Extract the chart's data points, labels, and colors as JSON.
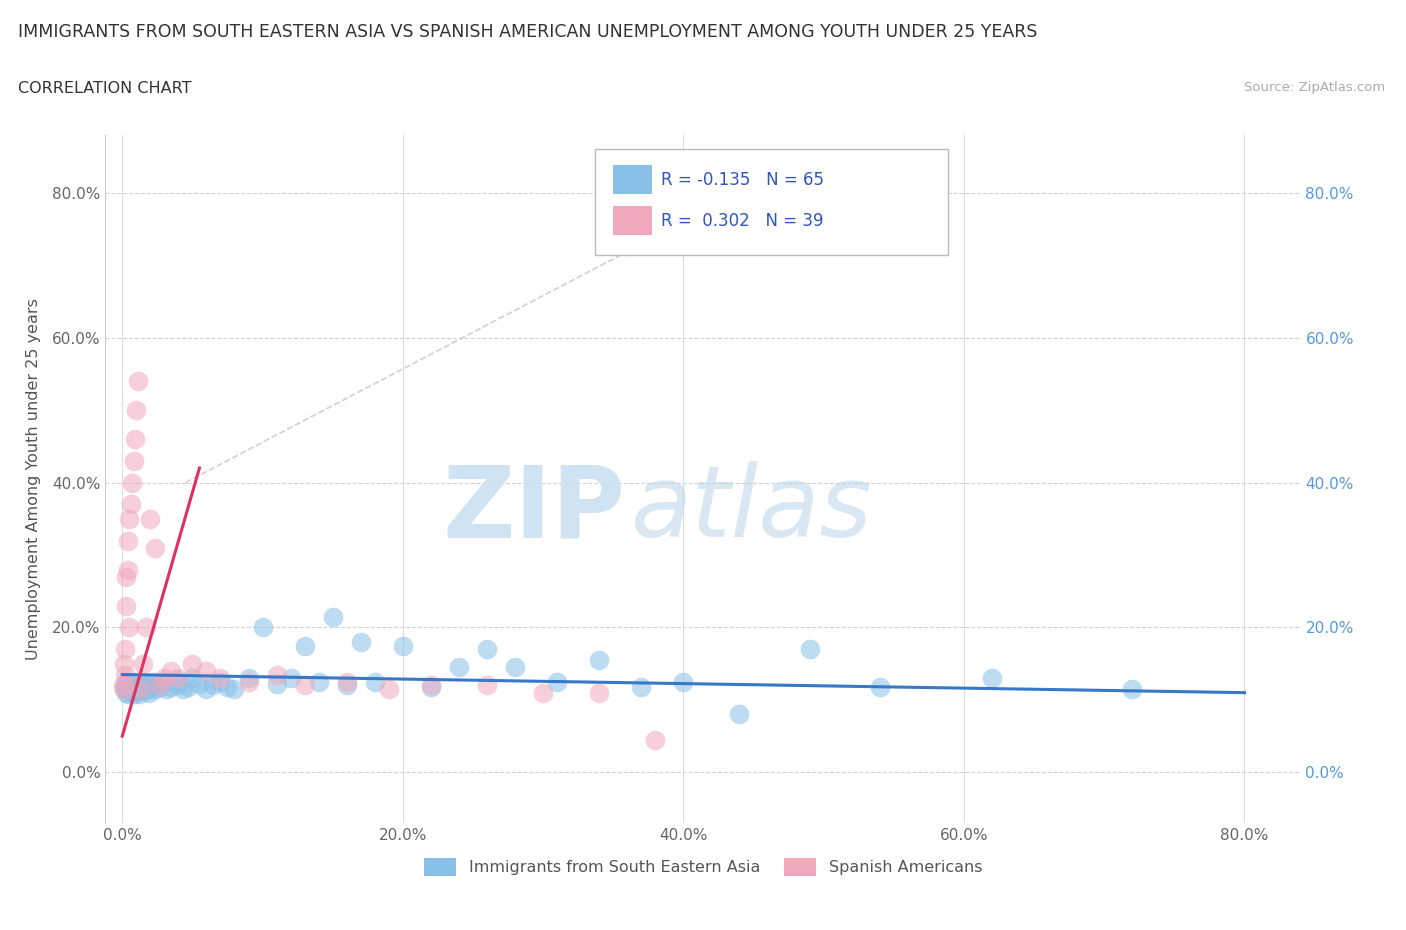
{
  "title": "IMMIGRANTS FROM SOUTH EASTERN ASIA VS SPANISH AMERICAN UNEMPLOYMENT AMONG YOUTH UNDER 25 YEARS",
  "subtitle": "CORRELATION CHART",
  "source": "Source: ZipAtlas.com",
  "ylabel": "Unemployment Among Youth under 25 years",
  "watermark_zip": "ZIP",
  "watermark_atlas": "atlas",
  "legend_blue_r": "R = -0.135",
  "legend_blue_n": "N = 65",
  "legend_pink_r": "R =  0.302",
  "legend_pink_n": "N = 39",
  "legend_blue_label": "Immigrants from South Eastern Asia",
  "legend_pink_label": "Spanish Americans",
  "blue_color": "#88c0e8",
  "pink_color": "#f0a8bc",
  "blue_line_color": "#3878c8",
  "pink_line_color": "#e03060",
  "background_color": "#ffffff",
  "grid_color": "#cccccc",
  "x_ticks": [
    0.0,
    0.2,
    0.4,
    0.6,
    0.8
  ],
  "y_ticks": [
    0.0,
    0.2,
    0.4,
    0.6,
    0.8
  ],
  "x_tick_labels": [
    "0.0%",
    "20.0%",
    "40.0%",
    "60.0%",
    "80.0%"
  ],
  "y_tick_labels": [
    "0.0%",
    "20.0%",
    "40.0%",
    "60.0%",
    "80.0%"
  ],
  "blue_x": [
    0.001,
    0.002,
    0.003,
    0.003,
    0.004,
    0.005,
    0.006,
    0.006,
    0.007,
    0.008,
    0.009,
    0.01,
    0.01,
    0.011,
    0.012,
    0.013,
    0.014,
    0.015,
    0.016,
    0.017,
    0.018,
    0.019,
    0.02,
    0.022,
    0.023,
    0.025,
    0.027,
    0.03,
    0.032,
    0.035,
    0.038,
    0.04,
    0.043,
    0.047,
    0.05,
    0.055,
    0.06,
    0.065,
    0.07,
    0.075,
    0.08,
    0.09,
    0.1,
    0.11,
    0.12,
    0.13,
    0.14,
    0.15,
    0.16,
    0.17,
    0.18,
    0.2,
    0.22,
    0.24,
    0.26,
    0.28,
    0.31,
    0.34,
    0.37,
    0.4,
    0.44,
    0.49,
    0.54,
    0.62,
    0.72
  ],
  "blue_y": [
    0.115,
    0.12,
    0.11,
    0.125,
    0.108,
    0.118,
    0.112,
    0.122,
    0.115,
    0.108,
    0.118,
    0.115,
    0.125,
    0.112,
    0.108,
    0.12,
    0.115,
    0.118,
    0.112,
    0.122,
    0.115,
    0.11,
    0.118,
    0.125,
    0.115,
    0.12,
    0.118,
    0.125,
    0.115,
    0.118,
    0.128,
    0.12,
    0.115,
    0.118,
    0.13,
    0.122,
    0.115,
    0.12,
    0.125,
    0.118,
    0.115,
    0.13,
    0.2,
    0.122,
    0.13,
    0.175,
    0.125,
    0.215,
    0.12,
    0.18,
    0.125,
    0.175,
    0.118,
    0.145,
    0.17,
    0.145,
    0.125,
    0.155,
    0.118,
    0.125,
    0.08,
    0.17,
    0.118,
    0.13,
    0.115
  ],
  "pink_x": [
    0.0005,
    0.001,
    0.001,
    0.002,
    0.002,
    0.003,
    0.003,
    0.004,
    0.004,
    0.005,
    0.005,
    0.006,
    0.007,
    0.008,
    0.009,
    0.01,
    0.011,
    0.013,
    0.015,
    0.017,
    0.02,
    0.023,
    0.027,
    0.03,
    0.035,
    0.04,
    0.05,
    0.06,
    0.07,
    0.09,
    0.11,
    0.13,
    0.16,
    0.19,
    0.22,
    0.26,
    0.3,
    0.34,
    0.38
  ],
  "pink_y": [
    0.12,
    0.15,
    0.115,
    0.17,
    0.135,
    0.27,
    0.23,
    0.32,
    0.28,
    0.35,
    0.2,
    0.37,
    0.4,
    0.43,
    0.46,
    0.5,
    0.54,
    0.115,
    0.15,
    0.2,
    0.35,
    0.31,
    0.12,
    0.13,
    0.14,
    0.13,
    0.15,
    0.14,
    0.13,
    0.125,
    0.135,
    0.12,
    0.125,
    0.115,
    0.12,
    0.12,
    0.11,
    0.11,
    0.045
  ],
  "pink_line_x0": 0.0,
  "pink_line_x1": 0.055,
  "pink_line_y0": 0.05,
  "pink_line_y1": 0.42,
  "blue_line_x0": 0.0,
  "blue_line_x1": 0.8,
  "blue_line_y0": 0.135,
  "blue_line_y1": 0.11
}
